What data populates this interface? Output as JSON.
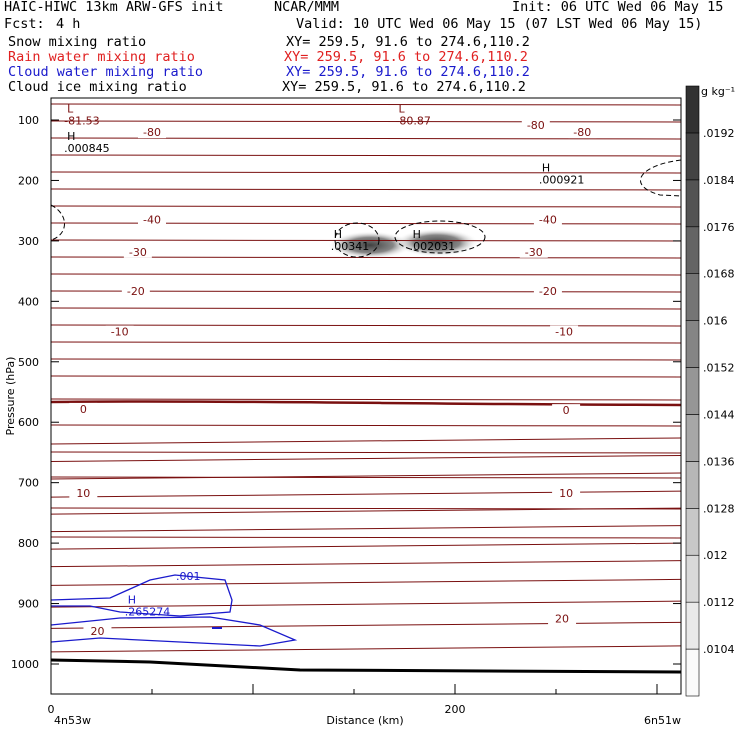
{
  "header": {
    "model": "HAIC-HIWC 13km ARW-GFS init",
    "center": "NCAR/MMM",
    "init": "Init: 06 UTC Wed 06 May 15",
    "fcst_label": "Fcst:",
    "fcst_value": "4 h",
    "valid": "Valid: 10 UTC Wed 06 May 15 (07 LST Wed 06 May 15)",
    "fields": [
      {
        "name": "Snow mixing ratio",
        "xy": "XY= 259.5, 91.6 to 274.6,110.2",
        "color": "#000000"
      },
      {
        "name": "Rain water mixing ratio",
        "xy": "XY= 259.5, 91.6 to 274.6,110.2",
        "color": "#e02020"
      },
      {
        "name": "Cloud water mixing ratio",
        "xy": "XY= 259.5, 91.6 to 274.6,110.2",
        "color": "#1a1acc"
      },
      {
        "name": "Cloud ice mixing ratio",
        "xy": "XY= 259.5, 91.6 to 274.6,110.2",
        "color": "#000000"
      }
    ]
  },
  "chart_data": {
    "type": "contour cross-section",
    "xlabel": "Distance (km)",
    "ylabel": "Pressure (hPa)",
    "x_ticks": [
      0,
      200
    ],
    "x_range": [
      0,
      310
    ],
    "y_ticks": [
      100,
      200,
      300,
      400,
      500,
      600,
      700,
      800,
      900,
      1000
    ],
    "y_range": [
      1050,
      50
    ],
    "left_endpoint": "4n53w",
    "right_endpoint": "6n51w",
    "colorbar": {
      "unit": "g kg⁻¹",
      "levels": [
        ".0104",
        ".0112",
        ".012",
        ".0128",
        ".0136",
        ".0144",
        ".0152",
        ".016",
        ".0168",
        ".0176",
        ".0184",
        ".0192"
      ]
    },
    "temperature_contour_labels": [
      {
        "text": "-80",
        "x": 50,
        "p": 120
      },
      {
        "text": "-80",
        "x": 240,
        "p": 108
      },
      {
        "text": "-80",
        "x": 263,
        "p": 120
      },
      {
        "text": "-40",
        "x": 50,
        "p": 265
      },
      {
        "text": "-40",
        "x": 246,
        "p": 265
      },
      {
        "text": "-30",
        "x": 43,
        "p": 318
      },
      {
        "text": "-30",
        "x": 239,
        "p": 318
      },
      {
        "text": "-20",
        "x": 42,
        "p": 383
      },
      {
        "text": "-20",
        "x": 246,
        "p": 383
      },
      {
        "text": "-10",
        "x": 34,
        "p": 450
      },
      {
        "text": "-10",
        "x": 254,
        "p": 450
      },
      {
        "text": "0",
        "x": 16,
        "p": 578
      },
      {
        "text": "0",
        "x": 255,
        "p": 580
      },
      {
        "text": "10",
        "x": 16,
        "p": 717
      },
      {
        "text": "10",
        "x": 255,
        "p": 717
      },
      {
        "text": "20",
        "x": 23,
        "p": 945
      },
      {
        "text": "20",
        "x": 253,
        "p": 925
      }
    ],
    "extrema": [
      {
        "type": "L",
        "value": "-81.53",
        "x": 8,
        "p": 88
      },
      {
        "type": "L",
        "value": "-80.87",
        "x": 172,
        "p": 88
      },
      {
        "type": "H",
        "value": ".000845",
        "x": 8,
        "p": 133
      },
      {
        "type": "H",
        "value": ".000921",
        "x": 243,
        "p": 185
      },
      {
        "type": "H",
        "value": ".00341",
        "x": 140,
        "p": 295
      },
      {
        "type": "H",
        "value": ".002031",
        "x": 179,
        "p": 295
      },
      {
        "type": "H",
        "value": ".265274",
        "x": 38,
        "p": 900
      }
    ],
    "cloud_water_contour_label": ".001",
    "shaded_cells": [
      {
        "x": 158,
        "p": 307,
        "value": 0.0185
      },
      {
        "x": 191,
        "p": 303,
        "value": 0.0192
      }
    ]
  }
}
